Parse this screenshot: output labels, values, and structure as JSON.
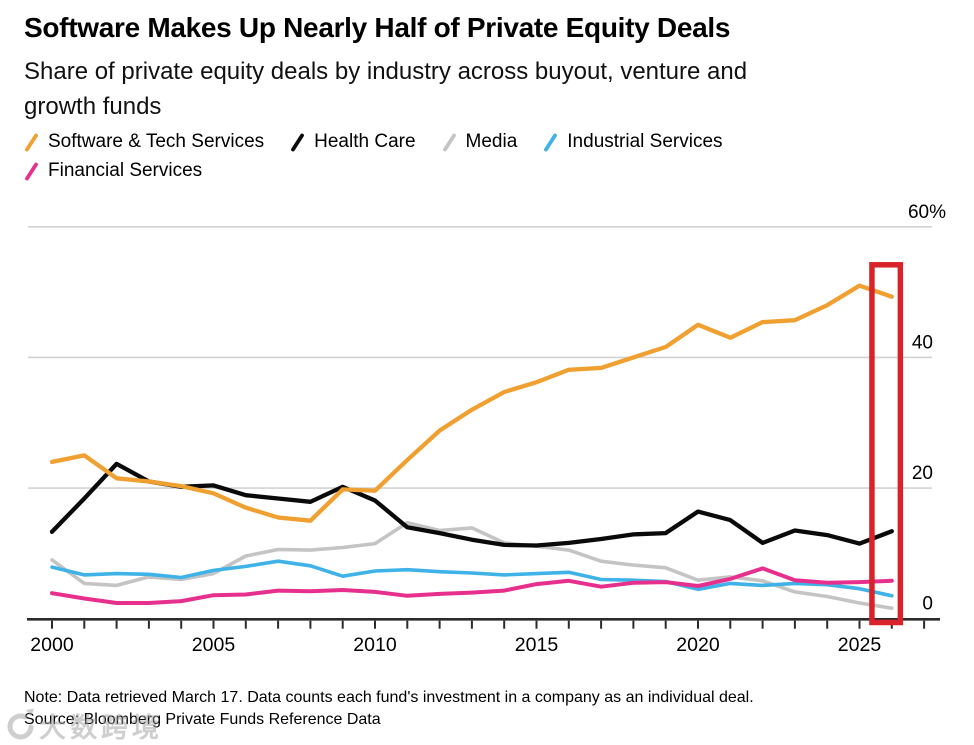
{
  "header": {
    "title": "Software Makes Up Nearly Half of Private Equity Deals",
    "subtitle": "Share of private equity deals by industry across buyout, venture and\ngrowth funds"
  },
  "chart_data": {
    "type": "line",
    "title": "Software Makes Up Nearly Half of Private Equity Deals",
    "unit": "%",
    "ylim": [
      0,
      60
    ],
    "grid": "horizontal",
    "legend_position": "top",
    "years": [
      2000,
      2001,
      2002,
      2003,
      2004,
      2005,
      2006,
      2007,
      2008,
      2009,
      2010,
      2011,
      2012,
      2013,
      2014,
      2015,
      2016,
      2017,
      2018,
      2019,
      2020,
      2021,
      2022,
      2023,
      2024,
      2025,
      2026
    ],
    "yticks": [
      {
        "value": 0,
        "label": "0"
      },
      {
        "value": 20,
        "label": "20"
      },
      {
        "value": 40,
        "label": "40"
      },
      {
        "value": 60,
        "label": "60%"
      }
    ],
    "xticks": [
      {
        "value": 2000,
        "label": "2000"
      },
      {
        "value": 2005,
        "label": "2005"
      },
      {
        "value": 2010,
        "label": "2010"
      },
      {
        "value": 2015,
        "label": "2015"
      },
      {
        "value": 2020,
        "label": "2020"
      },
      {
        "value": 2025,
        "label": "2025"
      }
    ],
    "series": [
      {
        "name": "Software & Tech Services",
        "color": "#F0A030",
        "values": [
          24,
          25,
          21.5,
          21,
          20.3,
          19.2,
          17,
          15.5,
          15,
          19.8,
          19.6,
          24.3,
          28.8,
          32,
          34.7,
          36.2,
          38.1,
          38.4,
          40,
          41.6,
          45,
          43,
          45.4,
          45.7,
          48,
          51,
          49.3
        ]
      },
      {
        "name": "Health Care",
        "color": "#0A0A0A",
        "values": [
          13.3,
          18.4,
          23.7,
          21,
          20.2,
          20.4,
          18.9,
          18.4,
          17.9,
          20.2,
          18.1,
          14,
          13.1,
          12.1,
          11.3,
          11.2,
          11.6,
          12.2,
          12.9,
          13.1,
          16.4,
          15.1,
          11.6,
          13.5,
          12.8,
          11.5,
          13.4
        ]
      },
      {
        "name": "Media",
        "color": "#C4C4C4",
        "values": [
          9,
          5.4,
          5.1,
          6.4,
          6,
          6.9,
          9.6,
          10.6,
          10.5,
          10.9,
          11.5,
          14.7,
          13.5,
          13.9,
          11.6,
          11.1,
          10.5,
          8.8,
          8.2,
          7.8,
          5.9,
          6.4,
          5.8,
          4.1,
          3.4,
          2.4,
          1.6
        ]
      },
      {
        "name": "Industrial Services",
        "color": "#3FB3E8",
        "values": [
          7.9,
          6.7,
          6.9,
          6.8,
          6.3,
          7.4,
          8,
          8.8,
          8.1,
          6.5,
          7.3,
          7.5,
          7.2,
          7,
          6.7,
          6.9,
          7.1,
          6,
          5.9,
          5.7,
          4.5,
          5.4,
          5.1,
          5.4,
          5.2,
          4.6,
          3.5
        ]
      },
      {
        "name": "Financial Services",
        "color": "#E7308E",
        "values": [
          3.9,
          3.1,
          2.4,
          2.4,
          2.7,
          3.6,
          3.7,
          4.3,
          4.2,
          4.4,
          4.1,
          3.5,
          3.8,
          4,
          4.3,
          5.3,
          5.8,
          4.9,
          5.5,
          5.6,
          5,
          6.1,
          7.7,
          5.9,
          5.5,
          5.6,
          5.8
        ]
      }
    ],
    "annotation": {
      "type": "highlight-box",
      "color": "#D8232A",
      "from_year": 2025.3,
      "to_year": 2026.35,
      "from_value": -1,
      "to_value": 54.6
    }
  },
  "footer": {
    "note": "Note: Data retrieved March 17. Data counts each fund's investment in a company as an individual deal.",
    "source": "Source: Bloomberg Private Funds Reference Data"
  },
  "watermark": {
    "text": "大数跨境"
  }
}
